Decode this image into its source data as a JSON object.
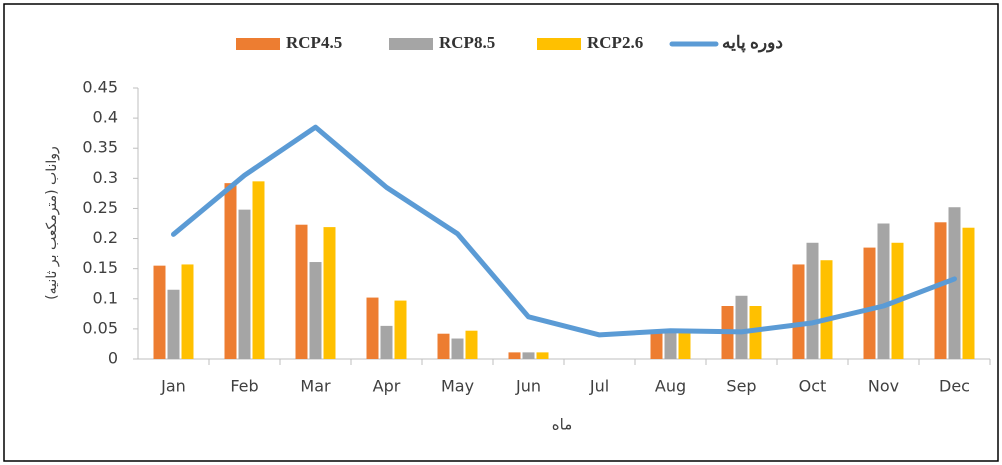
{
  "chart_data": {
    "type": "bar",
    "categories": [
      "Jan",
      "Feb",
      "Mar",
      "Apr",
      "May",
      "Jun",
      "Jul",
      "Aug",
      "Sep",
      "Oct",
      "Nov",
      "Dec"
    ],
    "series": [
      {
        "name": "RCP4.5",
        "color": "#ed7d31",
        "values": [
          0.155,
          0.292,
          0.223,
          0.102,
          0.042,
          0.011,
          0,
          0.043,
          0.088,
          0.157,
          0.185,
          0.227
        ]
      },
      {
        "name": "RCP8.5",
        "color": "#a5a5a5",
        "values": [
          0.115,
          0.248,
          0.161,
          0.055,
          0.034,
          0.011,
          0,
          0.045,
          0.105,
          0.193,
          0.225,
          0.252
        ]
      },
      {
        "name": "RCP2.6",
        "color": "#ffc000",
        "values": [
          0.157,
          0.295,
          0.219,
          0.097,
          0.047,
          0.011,
          0,
          0.045,
          0.088,
          0.164,
          0.193,
          0.218
        ]
      },
      {
        "name": "دوره پایه",
        "color": "#5b9bd5",
        "type": "line",
        "values": [
          0.207,
          0.305,
          0.385,
          0.285,
          0.208,
          0.07,
          0.04,
          0.047,
          0.045,
          0.06,
          0.088,
          0.133
        ]
      }
    ],
    "y_label": "رواناب (مترمکعب بر ثانیه)",
    "x_label": "ماه",
    "ylim": [
      0,
      0.45
    ],
    "yticks": [
      0,
      0.05,
      0.1,
      0.15,
      0.2,
      0.25,
      0.3,
      0.35,
      0.4,
      0.45
    ],
    "legend": "top"
  }
}
